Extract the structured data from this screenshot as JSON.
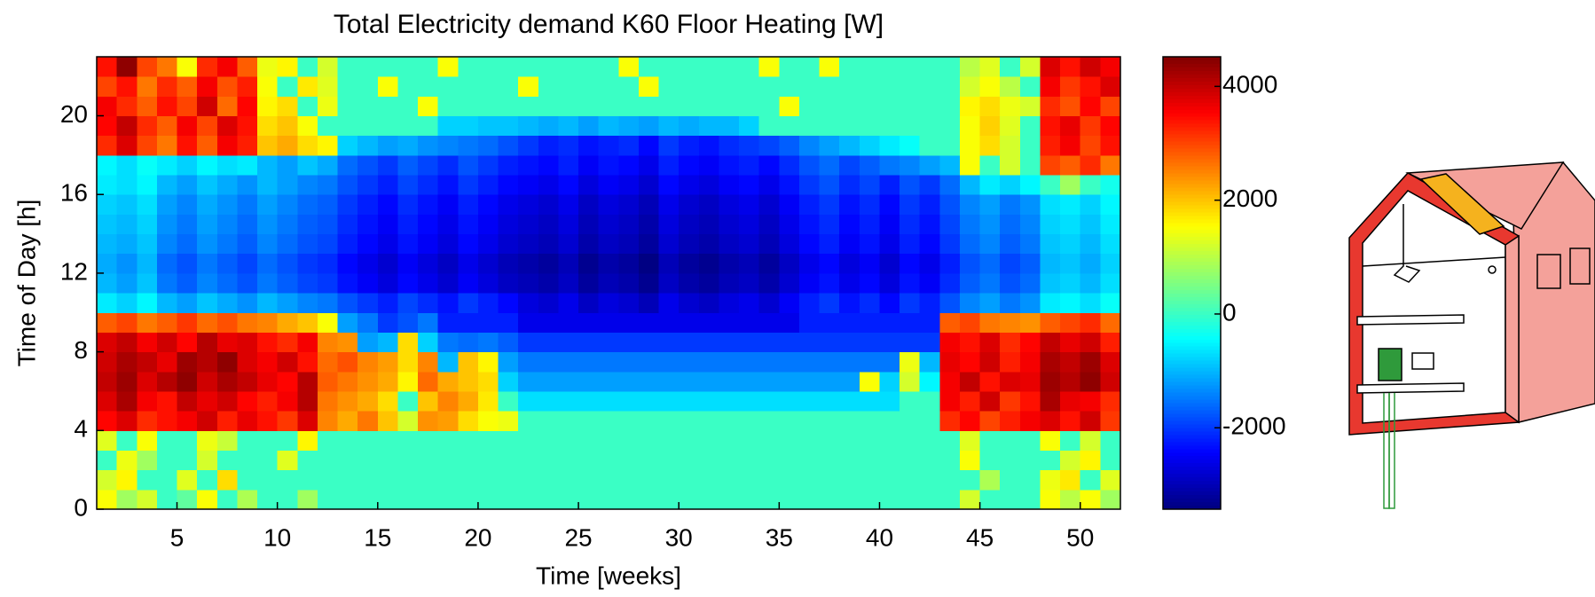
{
  "chart_data": {
    "type": "heatmap",
    "title": "Total Electricity demand K60 Floor Heating [W]",
    "xlabel": "Time [weeks]",
    "ylabel": "Time of Day [h]",
    "xlim": [
      1,
      52
    ],
    "ylim": [
      0,
      23
    ],
    "xticks": [
      5,
      10,
      15,
      20,
      25,
      30,
      35,
      40,
      45,
      50
    ],
    "yticks": [
      0,
      4,
      8,
      12,
      16,
      20
    ],
    "clim": [
      -3430,
      4520
    ],
    "cticks": [
      -2000,
      0,
      2000,
      4000
    ],
    "colormap": "jet",
    "z": [
      [
        1500,
        800,
        1200,
        0,
        300,
        1500,
        0,
        900,
        0,
        0,
        800,
        0,
        0,
        0,
        0,
        0,
        0,
        0,
        0,
        0,
        0,
        0,
        0,
        0,
        0,
        0,
        0,
        0,
        0,
        0,
        0,
        0,
        0,
        0,
        0,
        0,
        0,
        0,
        0,
        0,
        0,
        0,
        0,
        1200,
        0,
        0,
        0,
        1500,
        1000,
        1500,
        800
      ],
      [
        1200,
        1600,
        0,
        0,
        1300,
        0,
        1800,
        0,
        0,
        0,
        0,
        0,
        0,
        0,
        0,
        0,
        0,
        0,
        0,
        0,
        0,
        0,
        0,
        0,
        0,
        0,
        0,
        0,
        0,
        0,
        0,
        0,
        0,
        0,
        0,
        0,
        0,
        0,
        0,
        0,
        0,
        0,
        0,
        0,
        900,
        0,
        0,
        1400,
        1700,
        0,
        1300
      ],
      [
        0,
        1400,
        800,
        0,
        0,
        1200,
        0,
        0,
        0,
        1300,
        0,
        0,
        0,
        0,
        0,
        0,
        0,
        0,
        0,
        0,
        0,
        0,
        0,
        0,
        0,
        0,
        0,
        0,
        0,
        0,
        0,
        0,
        0,
        0,
        0,
        0,
        0,
        0,
        0,
        0,
        0,
        0,
        0,
        1500,
        0,
        0,
        0,
        0,
        1200,
        1600,
        0
      ],
      [
        1300,
        0,
        1500,
        0,
        0,
        1400,
        1100,
        0,
        0,
        0,
        1600,
        0,
        0,
        0,
        0,
        0,
        0,
        0,
        0,
        0,
        0,
        0,
        0,
        0,
        0,
        0,
        0,
        0,
        0,
        0,
        0,
        0,
        0,
        0,
        0,
        0,
        0,
        0,
        0,
        0,
        0,
        0,
        0,
        1300,
        0,
        0,
        0,
        1500,
        0,
        1200,
        0
      ],
      [
        3500,
        3800,
        3200,
        3400,
        3600,
        3900,
        3300,
        3700,
        3400,
        3100,
        3800,
        2500,
        2200,
        2600,
        2000,
        1200,
        2400,
        2300,
        1800,
        1500,
        1400,
        0,
        0,
        0,
        0,
        0,
        0,
        0,
        0,
        0,
        0,
        0,
        0,
        0,
        0,
        0,
        0,
        0,
        0,
        0,
        0,
        0,
        3200,
        3500,
        3000,
        3300,
        3600,
        3800,
        3400,
        3900,
        3100
      ],
      [
        3800,
        4200,
        3600,
        3400,
        4000,
        3700,
        3900,
        3500,
        3300,
        3600,
        4100,
        2600,
        2400,
        2200,
        1800,
        0,
        2000,
        2500,
        2200,
        1700,
        0,
        -700,
        -700,
        -700,
        -700,
        -700,
        -700,
        -700,
        -700,
        -700,
        -700,
        -700,
        -700,
        -700,
        -700,
        -700,
        -700,
        -700,
        -700,
        -700,
        0,
        0,
        3600,
        3300,
        3900,
        3100,
        3400,
        4200,
        3700,
        3600,
        3200
      ],
      [
        4000,
        4300,
        3800,
        4100,
        4400,
        3900,
        4200,
        4000,
        3700,
        3500,
        4100,
        2800,
        2600,
        2400,
        2200,
        1600,
        2700,
        2200,
        2000,
        1800,
        -800,
        -1200,
        -1200,
        -1200,
        -1200,
        -1200,
        -1200,
        -1200,
        -1200,
        -1200,
        -1200,
        -1200,
        -1200,
        -1200,
        -1200,
        -1200,
        -1200,
        -1200,
        1500,
        -800,
        1200,
        -500,
        3600,
        4000,
        3400,
        3800,
        3700,
        4300,
        4100,
        4400,
        3900
      ],
      [
        3900,
        4200,
        4000,
        3700,
        4300,
        4100,
        4400,
        3800,
        3600,
        3900,
        3400,
        2700,
        2900,
        2500,
        2300,
        1800,
        2500,
        -1000,
        2000,
        1600,
        -1200,
        -1500,
        -1500,
        -1500,
        -1500,
        -1500,
        -1500,
        -1500,
        -1500,
        -1500,
        -1500,
        -1500,
        -1500,
        -1500,
        -1500,
        -1500,
        -1500,
        -1500,
        -1500,
        -1500,
        1400,
        -1000,
        3700,
        3500,
        3900,
        3300,
        3600,
        4200,
        4000,
        4300,
        3800
      ],
      [
        3800,
        4000,
        3600,
        3900,
        3500,
        4100,
        3700,
        3800,
        3400,
        3200,
        3600,
        2500,
        2400,
        -1200,
        -1000,
        1800,
        -800,
        -1500,
        -1600,
        -1500,
        -1700,
        -2000,
        -2000,
        -2000,
        -2000,
        -2000,
        -2000,
        -2000,
        -2000,
        -2000,
        -2000,
        -2000,
        -2000,
        -2000,
        -2000,
        -2000,
        -2000,
        -2000,
        -2000,
        -2000,
        -2000,
        -2000,
        3600,
        3400,
        3800,
        3200,
        3500,
        4000,
        3700,
        3900,
        3300
      ],
      [
        2800,
        3000,
        2600,
        2800,
        3100,
        2700,
        2900,
        2600,
        2500,
        2200,
        2000,
        1500,
        -1200,
        -1500,
        -2000,
        -1800,
        -1500,
        -2200,
        -2200,
        -2200,
        -2200,
        -2600,
        -2600,
        -2600,
        -2600,
        -2600,
        -2600,
        -2600,
        -2600,
        -2600,
        -2600,
        -2600,
        -2600,
        -2600,
        -2600,
        -2200,
        -2200,
        -2200,
        -2200,
        -2200,
        -2200,
        -2200,
        2800,
        3000,
        2600,
        2500,
        2400,
        2800,
        3000,
        3200,
        2700
      ],
      [
        -600,
        -800,
        -500,
        -1000,
        -1200,
        -900,
        -1100,
        -1300,
        -1000,
        -1200,
        -1400,
        -1500,
        -1800,
        -2000,
        -2200,
        -1900,
        -2100,
        -2300,
        -2000,
        -2200,
        -2400,
        -2700,
        -2800,
        -2600,
        -2900,
        -2700,
        -2800,
        -3000,
        -2600,
        -2800,
        -2900,
        -2700,
        -2600,
        -2800,
        -2500,
        -2200,
        -2000,
        -2300,
        -2100,
        -2400,
        -2000,
        -2200,
        -1800,
        -1400,
        -1200,
        -1500,
        -1300,
        -600,
        -500,
        -700,
        -400
      ],
      [
        -1000,
        -1200,
        -900,
        -1500,
        -1700,
        -1400,
        -1600,
        -1800,
        -1500,
        -1700,
        -1900,
        -2000,
        -2300,
        -2500,
        -2700,
        -2400,
        -2600,
        -2800,
        -2500,
        -2700,
        -2900,
        -3000,
        -3100,
        -2900,
        -3200,
        -3000,
        -3100,
        -3300,
        -2900,
        -3100,
        -3200,
        -3000,
        -2900,
        -3100,
        -2800,
        -2500,
        -2300,
        -2600,
        -2400,
        -2700,
        -2300,
        -2500,
        -2100,
        -1700,
        -1500,
        -1800,
        -1600,
        -900,
        -800,
        -1000,
        -700
      ],
      [
        -1100,
        -1300,
        -1000,
        -1600,
        -1800,
        -1500,
        -1700,
        -1900,
        -1600,
        -1800,
        -2000,
        -2100,
        -2400,
        -2600,
        -2800,
        -2500,
        -2700,
        -2900,
        -2600,
        -2800,
        -3000,
        -3100,
        -3200,
        -3000,
        -3300,
        -3100,
        -3200,
        -3400,
        -3000,
        -3200,
        -3300,
        -3100,
        -3000,
        -3200,
        -2900,
        -2600,
        -2400,
        -2700,
        -2500,
        -2800,
        -2400,
        -2600,
        -2200,
        -1800,
        -1600,
        -1900,
        -1700,
        -1000,
        -900,
        -1100,
        -800
      ],
      [
        -1000,
        -1100,
        -900,
        -1400,
        -1600,
        -1300,
        -1500,
        -1700,
        -1400,
        -1600,
        -1800,
        -1900,
        -2200,
        -2400,
        -2600,
        -2300,
        -2500,
        -2700,
        -2400,
        -2600,
        -2800,
        -2900,
        -3000,
        -2800,
        -3100,
        -2900,
        -3000,
        -3200,
        -2800,
        -3000,
        -3100,
        -2900,
        -2800,
        -3000,
        -2700,
        -2400,
        -2200,
        -2500,
        -2300,
        -2600,
        -2200,
        -2400,
        -2000,
        -1600,
        -1400,
        -1700,
        -1500,
        -900,
        -800,
        -1000,
        -700
      ],
      [
        -900,
        -1000,
        -800,
        -1300,
        -1500,
        -1200,
        -1400,
        -1600,
        -1300,
        -1500,
        -1700,
        -1800,
        -2100,
        -2300,
        -2500,
        -2200,
        -2400,
        -2600,
        -2300,
        -2500,
        -2700,
        -2800,
        -2900,
        -2700,
        -3000,
        -2800,
        -2900,
        -3100,
        -2700,
        -2900,
        -3000,
        -2800,
        -2700,
        -2900,
        -2600,
        -2300,
        -2100,
        -2400,
        -2200,
        -2500,
        -2100,
        -2300,
        -1900,
        -1500,
        -1300,
        -1600,
        -1400,
        -800,
        -700,
        -900,
        -600
      ],
      [
        -800,
        -900,
        -700,
        -1200,
        -1400,
        -1100,
        -1300,
        -1500,
        -1200,
        -1400,
        -1600,
        -1700,
        -2000,
        -2200,
        -2400,
        -2100,
        -2300,
        -2500,
        -2200,
        -2400,
        -2600,
        -2700,
        -2800,
        -2600,
        -2900,
        -2700,
        -2800,
        -3000,
        -2600,
        -2800,
        -2900,
        -2700,
        -2600,
        -2800,
        -2500,
        -2200,
        -2000,
        -2300,
        -2100,
        -2400,
        -2000,
        -2200,
        -1800,
        -1400,
        -1200,
        -1500,
        -1300,
        -700,
        -600,
        -800,
        -500
      ],
      [
        -600,
        -700,
        -500,
        -1000,
        -1200,
        -900,
        -1100,
        -1300,
        -1000,
        -1200,
        -1400,
        -1500,
        -1800,
        -2000,
        -2200,
        -1900,
        -2100,
        -2300,
        -2000,
        -2200,
        -2400,
        -2500,
        -2600,
        -2400,
        -2700,
        -2500,
        -2600,
        -2800,
        -2400,
        -2600,
        -2700,
        -2500,
        -2400,
        -2600,
        -2300,
        -2000,
        -1800,
        -2100,
        -1900,
        -2200,
        -1800,
        -2000,
        -1600,
        -1000,
        -600,
        -800,
        -500,
        0,
        800,
        0,
        -300
      ],
      [
        -500,
        -700,
        -400,
        -600,
        -800,
        -500,
        -700,
        -600,
        -1000,
        -1200,
        -900,
        -1100,
        -1600,
        -1800,
        -2000,
        -1700,
        -1900,
        -2100,
        -1800,
        -2000,
        -2200,
        -2300,
        -2400,
        -2200,
        -2500,
        -2300,
        -2400,
        -2600,
        -2200,
        -2400,
        -2500,
        -2300,
        -2200,
        -2400,
        -2100,
        -1800,
        -1600,
        -1900,
        -1700,
        -1500,
        -1400,
        -1200,
        -1000,
        1500,
        0,
        1200,
        0,
        3000,
        2800,
        3200,
        2600
      ],
      [
        3200,
        3800,
        3000,
        2600,
        3400,
        2800,
        3600,
        3300,
        2000,
        2200,
        1800,
        1600,
        -800,
        -1000,
        -1200,
        -1100,
        -1300,
        -1400,
        -1500,
        -1600,
        -1800,
        -2000,
        -2200,
        -2100,
        -2300,
        -2200,
        -2100,
        -2400,
        -2000,
        -2200,
        -2300,
        -2100,
        -2000,
        -1900,
        -1700,
        -1400,
        -1200,
        -1000,
        -800,
        -600,
        -400,
        0,
        0,
        1500,
        1800,
        1200,
        0,
        3300,
        3600,
        3000,
        3400
      ],
      [
        3500,
        4000,
        3200,
        2800,
        3600,
        3000,
        3800,
        3400,
        1800,
        2000,
        1500,
        0,
        0,
        0,
        0,
        0,
        0,
        -800,
        -800,
        -900,
        -900,
        -1000,
        -1100,
        -1000,
        -1200,
        -1000,
        -1100,
        -1200,
        -1000,
        -1100,
        -1000,
        -1000,
        -800,
        0,
        0,
        0,
        0,
        0,
        0,
        0,
        0,
        0,
        0,
        1500,
        1900,
        1300,
        0,
        3400,
        3700,
        3100,
        3500
      ],
      [
        3600,
        3200,
        2800,
        3400,
        3000,
        3900,
        2700,
        3500,
        1600,
        1800,
        0,
        1400,
        0,
        0,
        0,
        0,
        1500,
        0,
        0,
        0,
        0,
        0,
        0,
        0,
        0,
        0,
        0,
        0,
        0,
        0,
        0,
        0,
        0,
        0,
        1500,
        0,
        0,
        0,
        0,
        0,
        0,
        0,
        0,
        1600,
        1800,
        1400,
        1200,
        3200,
        2900,
        3500,
        3000
      ],
      [
        3000,
        3400,
        2600,
        3200,
        2800,
        3600,
        2900,
        3300,
        1500,
        0,
        1700,
        1300,
        0,
        0,
        1500,
        0,
        0,
        0,
        0,
        0,
        0,
        1500,
        0,
        0,
        0,
        0,
        0,
        1500,
        0,
        0,
        0,
        0,
        0,
        0,
        0,
        0,
        0,
        0,
        0,
        0,
        0,
        0,
        0,
        1200,
        1500,
        1000,
        0,
        3600,
        3100,
        3400,
        3800
      ],
      [
        3400,
        4400,
        3000,
        2600,
        1500,
        3200,
        3600,
        2800,
        1400,
        1600,
        0,
        1200,
        0,
        0,
        0,
        0,
        0,
        1500,
        0,
        0,
        0,
        0,
        0,
        0,
        0,
        0,
        1500,
        0,
        0,
        0,
        0,
        0,
        0,
        1500,
        0,
        0,
        1500,
        0,
        0,
        0,
        0,
        0,
        0,
        1000,
        1300,
        0,
        1200,
        3800,
        3400,
        3900,
        3600
      ]
    ]
  }
}
